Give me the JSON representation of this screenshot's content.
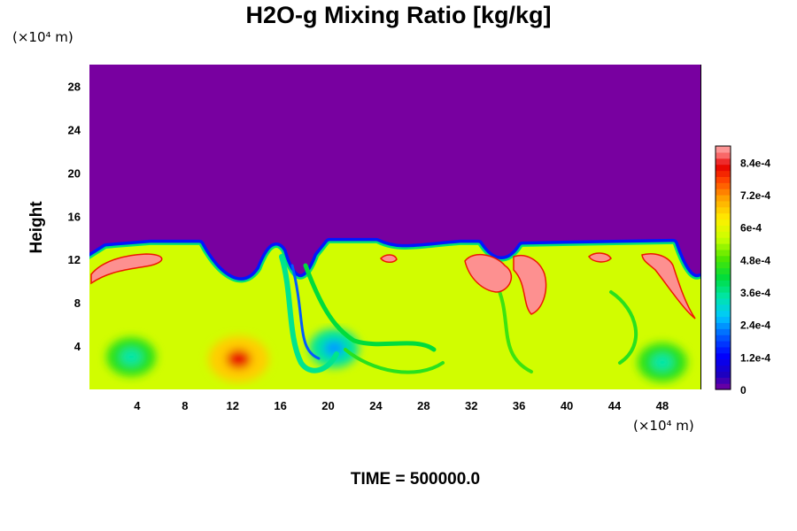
{
  "chart_data": {
    "type": "heatmap",
    "title": "H2O-g Mixing Ratio [kg/kg]",
    "ylabel": "Height",
    "xlabel": "",
    "x_unit": "(×10⁴ m)",
    "y_unit": "(×10⁴ m)",
    "time_label": "TIME = 500000.0",
    "x_ticks": [
      "4",
      "8",
      "12",
      "16",
      "20",
      "24",
      "28",
      "32",
      "36",
      "40",
      "44",
      "48"
    ],
    "y_ticks": [
      "4",
      "8",
      "12",
      "16",
      "20",
      "24",
      "28"
    ],
    "xlim": [
      0,
      51.2
    ],
    "ylim": [
      0,
      30
    ],
    "colorbar": {
      "min": 0,
      "max": 0.0009,
      "tick_labels": [
        "0",
        "1.2e-4",
        "2.4e-4",
        "3.6e-4",
        "4.8e-4",
        "6e-4",
        "7.2e-4",
        "8.4e-4"
      ],
      "tick_values": [
        0,
        0.00012,
        0.00024,
        0.00036,
        0.00048,
        0.0006,
        0.00072,
        0.00084
      ]
    },
    "field_summary": {
      "upper_layer_value": 0,
      "lower_layer_typical_value": 0.00057,
      "boundary_height": 13.5,
      "max_spot": {
        "x": 12.5,
        "y": 2.8,
        "value": 0.00075
      },
      "moist_spots": [
        {
          "x": 3.5,
          "y": 3,
          "value": 0.00045
        },
        {
          "x": 20.5,
          "y": 3.8,
          "value": 0.00035
        },
        {
          "x": 48,
          "y": 2.5,
          "value": 0.00045
        }
      ]
    }
  }
}
